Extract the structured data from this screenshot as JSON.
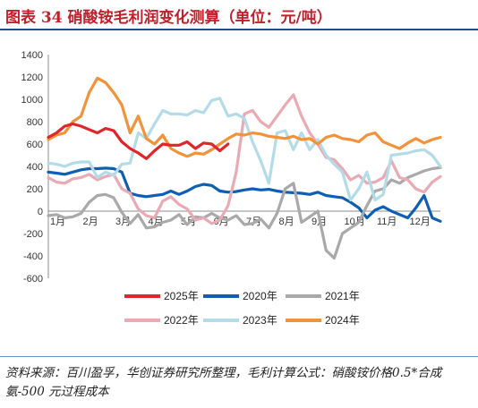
{
  "title": "图表 34  硝酸铵毛利润变化测算（单位：元/吨）",
  "source_text": "资料来源：百川盈孚，华创证券研究所整理，毛利计算公式：硝酸铵价格0.5*合成氨-500 元过程成本",
  "chart_data": {
    "type": "line",
    "title": "",
    "xlabel": "",
    "ylabel": "",
    "x_ticks": [
      "1月",
      "2月",
      "3月",
      "4月",
      "5月",
      "6月",
      "7月",
      "8月",
      "9月",
      "10月",
      "11月",
      "12月"
    ],
    "x": [
      0,
      0.25,
      0.5,
      0.75,
      1,
      1.25,
      1.5,
      1.75,
      2,
      2.25,
      2.5,
      2.75,
      3,
      3.25,
      3.5,
      3.75,
      4,
      4.25,
      4.5,
      4.75,
      5,
      5.25,
      5.5,
      5.75,
      6,
      6.25,
      6.5,
      6.75,
      7,
      7.25,
      7.5,
      7.75,
      8,
      8.25,
      8.5,
      8.75,
      9,
      9.25,
      9.5,
      9.75,
      10,
      10.25,
      10.5,
      10.75,
      11,
      11.25,
      11.5,
      11.75,
      12
    ],
    "ylim": [
      -600,
      1400
    ],
    "yticks": [
      -600,
      -400,
      -200,
      0,
      200,
      400,
      600,
      800,
      1000,
      1200,
      1400
    ],
    "grid": false,
    "legend_position": "bottom",
    "legend_order": [
      "2025年",
      "2020年",
      "2021年",
      "2022年",
      "2023年",
      "2024年"
    ],
    "series": [
      {
        "name": "2020年",
        "color": "#0e5fb4",
        "values": [
          350,
          340,
          330,
          350,
          370,
          380,
          380,
          385,
          380,
          350,
          160,
          140,
          130,
          140,
          150,
          180,
          150,
          180,
          220,
          240,
          230,
          180,
          170,
          175,
          190,
          200,
          190,
          195,
          180,
          170,
          165,
          160,
          150,
          170,
          140,
          130,
          120,
          80,
          30,
          -60,
          10,
          40,
          0,
          -30,
          -60,
          30,
          140,
          -60,
          -90
        ]
      },
      {
        "name": "2021年",
        "color": "#a9a9a9",
        "values": [
          -40,
          -30,
          -60,
          -50,
          -20,
          80,
          140,
          150,
          120,
          -10,
          -110,
          -30,
          -150,
          -140,
          -100,
          -80,
          -30,
          -120,
          -50,
          -60,
          -20,
          -60,
          -80,
          -40,
          -120,
          -110,
          -70,
          -150,
          -20,
          200,
          250,
          -100,
          -50,
          0,
          -350,
          -420,
          -200,
          -150,
          -100,
          50,
          180,
          200,
          280,
          250,
          300,
          330,
          360,
          380,
          390
        ]
      },
      {
        "name": "2022年",
        "color": "#e9aab3",
        "values": [
          300,
          260,
          250,
          290,
          300,
          330,
          280,
          310,
          330,
          200,
          160,
          20,
          -40,
          -60,
          90,
          130,
          60,
          20,
          -80,
          -60,
          -110,
          -80,
          50,
          350,
          870,
          900,
          800,
          750,
          850,
          950,
          1040,
          850,
          700,
          600,
          480,
          460,
          380,
          280,
          320,
          250,
          260,
          300,
          450,
          300,
          280,
          200,
          170,
          260,
          310
        ]
      },
      {
        "name": "2023年",
        "color": "#b3dbe8",
        "values": [
          430,
          420,
          400,
          430,
          440,
          440,
          300,
          350,
          320,
          420,
          430,
          700,
          650,
          780,
          900,
          870,
          870,
          860,
          900,
          880,
          990,
          1010,
          850,
          870,
          830,
          620,
          450,
          250,
          700,
          720,
          550,
          700,
          550,
          640,
          500,
          420,
          350,
          100,
          200,
          350,
          100,
          150,
          500,
          510,
          520,
          540,
          550,
          500,
          400
        ]
      },
      {
        "name": "2024年",
        "color": "#f2923a",
        "values": [
          640,
          680,
          700,
          800,
          850,
          1060,
          1190,
          1150,
          1060,
          950,
          700,
          850,
          650,
          600,
          680,
          560,
          520,
          490,
          520,
          510,
          550,
          600,
          650,
          690,
          680,
          700,
          690,
          670,
          660,
          650,
          670,
          640,
          650,
          600,
          660,
          680,
          650,
          640,
          620,
          680,
          700,
          620,
          590,
          560,
          610,
          650,
          610,
          640,
          660
        ]
      },
      {
        "name": "2025年",
        "color": "#e0252b",
        "values": [
          660,
          700,
          760,
          780,
          760,
          730,
          700,
          740,
          720,
          620,
          560,
          520,
          470,
          540,
          600,
          590,
          590,
          620,
          560,
          610,
          600,
          540,
          600,
          null,
          null,
          null,
          null,
          null,
          null,
          null,
          null,
          null,
          null,
          null,
          null,
          null,
          null,
          null,
          null,
          null,
          null,
          null,
          null,
          null,
          null,
          null,
          null,
          null,
          null
        ]
      }
    ]
  }
}
